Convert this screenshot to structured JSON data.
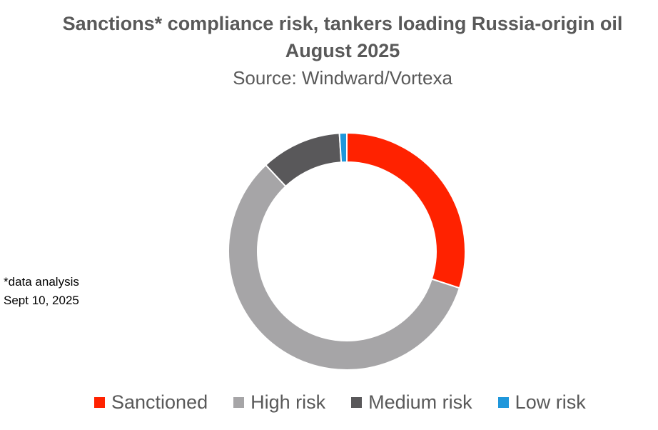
{
  "title_line1": "Sanctions* compliance risk, tankers loading Russia-origin oil",
  "title_line2": "August 2025",
  "subtitle": "Source: Windward/Vortexa",
  "note_line1": "*data analysis",
  "note_line2": "Sept 10, 2025",
  "chart_data": {
    "type": "pie",
    "style": "donut",
    "title": "Sanctions* compliance risk, tankers loading Russia-origin oil August 2025",
    "subtitle": "Source: Windward/Vortexa",
    "legend_position": "bottom",
    "categories": [
      "Sanctioned",
      "High risk",
      "Medium risk",
      "Low risk"
    ],
    "values": [
      30,
      58,
      11,
      1
    ],
    "colors": [
      "#ff2200",
      "#a6a5a7",
      "#59585a",
      "#1f97db"
    ]
  }
}
